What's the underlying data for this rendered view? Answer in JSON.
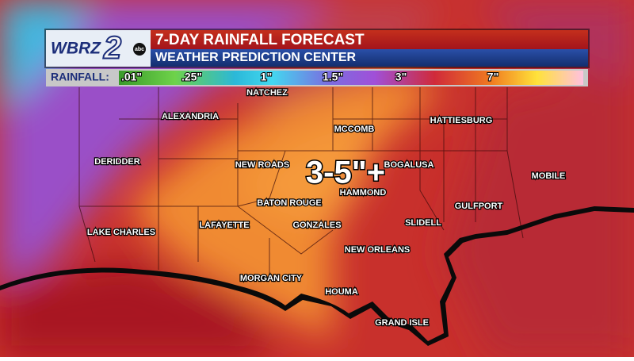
{
  "header": {
    "logo": "WBRZ",
    "channel": "2",
    "network": "abc",
    "title": "7-DAY RAINFALL FORECAST",
    "subtitle": "WEATHER PREDICTION CENTER"
  },
  "legend": {
    "label": "RAINFALL:",
    "ticks": [
      ".01\"",
      ".25\"",
      "1\"",
      "1.5\"",
      "3\"",
      "7\""
    ]
  },
  "map": {
    "headline": "3-5\"+",
    "cities": [
      "NATCHEZ",
      "ALEXANDRIA",
      "MCCOMB",
      "HATTIESBURG",
      "DERIDDER",
      "NEW ROADS",
      "BOGALUSA",
      "MOBILE",
      "HAMMOND",
      "BATON ROUGE",
      "GULFPORT",
      "SLIDELL",
      "LAFAYETTE",
      "GONZALES",
      "LAKE CHARLES",
      "NEW ORLEANS",
      "MORGAN CITY",
      "HOUMA",
      "GRAND ISLE"
    ]
  }
}
